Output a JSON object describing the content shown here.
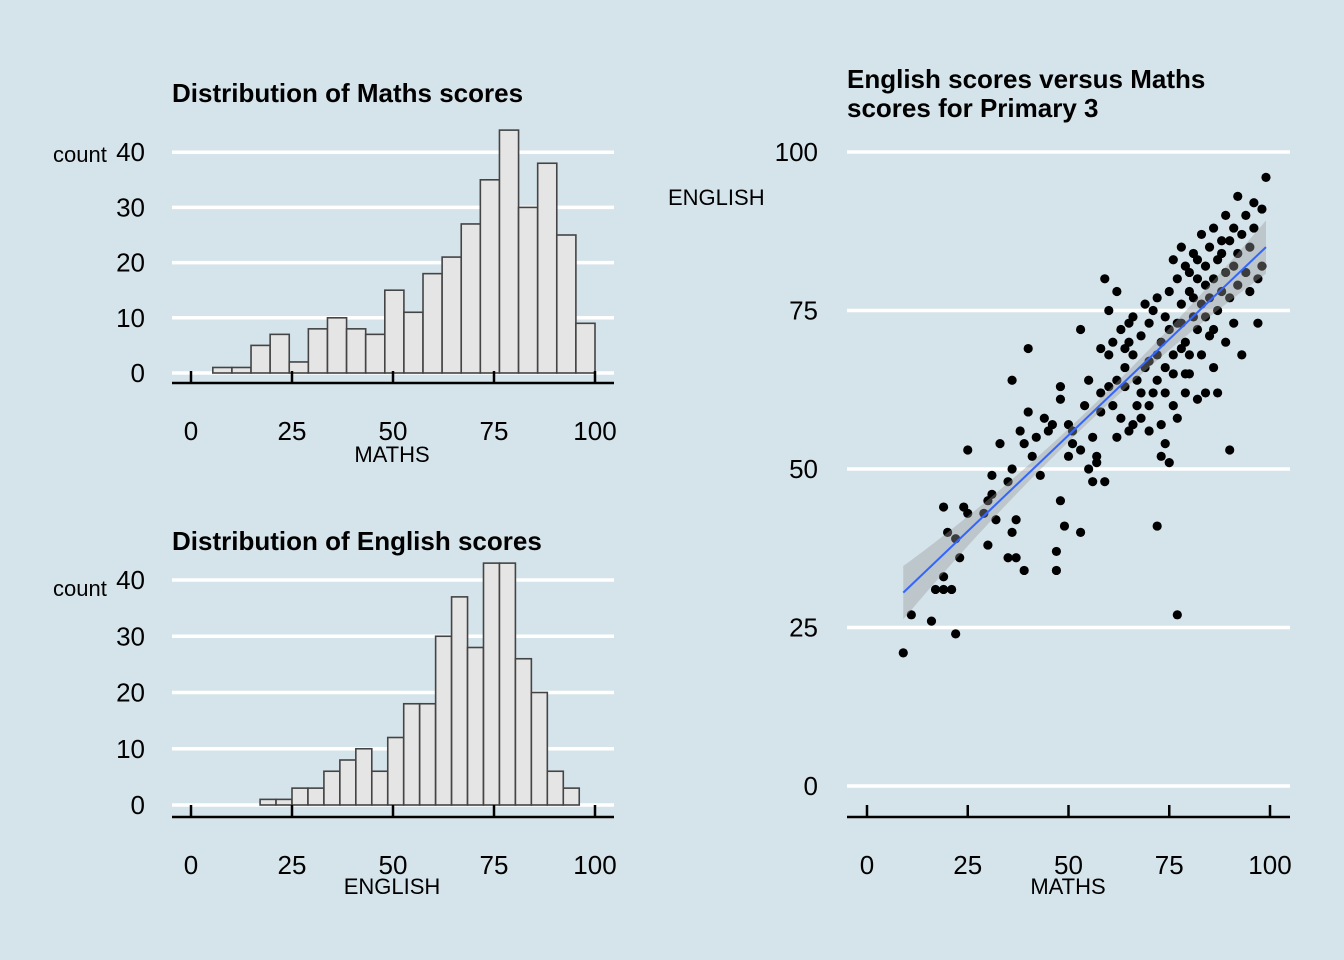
{
  "chart_data": [
    {
      "type": "bar",
      "title": "Distribution of Maths scores",
      "xlabel": "MATHS",
      "ylabel": "count",
      "xlim": [
        0,
        100
      ],
      "ylim": [
        0,
        44
      ],
      "xticks": [
        "0",
        "25",
        "50",
        "75",
        "100"
      ],
      "yticks": [
        "0",
        "10",
        "20",
        "30",
        "40"
      ],
      "bin_start": 5.4,
      "bin_width": 4.73,
      "values": [
        1,
        1,
        5,
        7,
        2,
        8,
        10,
        8,
        7,
        15,
        11,
        18,
        21,
        27,
        35,
        44,
        30,
        38,
        25,
        9
      ]
    },
    {
      "type": "bar",
      "title": "Distribution of English scores",
      "xlabel": "ENGLISH",
      "ylabel": "count",
      "xlim": [
        0,
        100
      ],
      "ylim": [
        0,
        43
      ],
      "xticks": [
        "0",
        "25",
        "50",
        "75",
        "100"
      ],
      "yticks": [
        "0",
        "10",
        "20",
        "30",
        "40"
      ],
      "bin_start": 17.1,
      "bin_width": 3.95,
      "values": [
        1,
        1,
        3,
        3,
        6,
        8,
        10,
        6,
        12,
        18,
        18,
        30,
        37,
        28,
        43,
        43,
        26,
        20,
        6,
        3
      ]
    },
    {
      "type": "scatter",
      "title": "English scores versus Maths scores for Primary 3",
      "title_lines": [
        "English scores versus Maths",
        "scores for Primary 3"
      ],
      "xlabel": "MATHS",
      "ylabel": "ENGLISH",
      "xlim": [
        0,
        100
      ],
      "ylim": [
        0,
        100
      ],
      "xticks": [
        "0",
        "25",
        "50",
        "75",
        "100"
      ],
      "yticks": [
        "0",
        "25",
        "50",
        "75",
        "100"
      ],
      "fit": {
        "type": "linear",
        "x": [
          9,
          99
        ],
        "y": [
          30.5,
          85
        ],
        "color": "#3366ff"
      },
      "points": [
        [
          9,
          21
        ],
        [
          11,
          27
        ],
        [
          16,
          26
        ],
        [
          17,
          31
        ],
        [
          19,
          31
        ],
        [
          21,
          31
        ],
        [
          19,
          33
        ],
        [
          22,
          24
        ],
        [
          19,
          44
        ],
        [
          20,
          40
        ],
        [
          22,
          39
        ],
        [
          23,
          36
        ],
        [
          24,
          44
        ],
        [
          25,
          43
        ],
        [
          25,
          53
        ],
        [
          29,
          43
        ],
        [
          30,
          38
        ],
        [
          30,
          45
        ],
        [
          31,
          46
        ],
        [
          31,
          49
        ],
        [
          32,
          42
        ],
        [
          33,
          54
        ],
        [
          35,
          48
        ],
        [
          36,
          50
        ],
        [
          35,
          36
        ],
        [
          37,
          36
        ],
        [
          39,
          34
        ],
        [
          36,
          40
        ],
        [
          37,
          42
        ],
        [
          36,
          64
        ],
        [
          38,
          56
        ],
        [
          39,
          54
        ],
        [
          40,
          59
        ],
        [
          40,
          69
        ],
        [
          41,
          52
        ],
        [
          42,
          55
        ],
        [
          43,
          49
        ],
        [
          44,
          58
        ],
        [
          45,
          56
        ],
        [
          46,
          57
        ],
        [
          47,
          34
        ],
        [
          47,
          37
        ],
        [
          48,
          45
        ],
        [
          48,
          61
        ],
        [
          48,
          63
        ],
        [
          49,
          41
        ],
        [
          50,
          57
        ],
        [
          50,
          52
        ],
        [
          51,
          56
        ],
        [
          51,
          54
        ],
        [
          53,
          40
        ],
        [
          53,
          72
        ],
        [
          53,
          53
        ],
        [
          54,
          60
        ],
        [
          55,
          64
        ],
        [
          55,
          50
        ],
        [
          56,
          55
        ],
        [
          56,
          48
        ],
        [
          57,
          51
        ],
        [
          57,
          52
        ],
        [
          58,
          59
        ],
        [
          58,
          62
        ],
        [
          59,
          80
        ],
        [
          59,
          48
        ],
        [
          60,
          75
        ],
        [
          60,
          68
        ],
        [
          61,
          70
        ],
        [
          61,
          60
        ],
        [
          62,
          78
        ],
        [
          62,
          64
        ],
        [
          63,
          58
        ],
        [
          63,
          72
        ],
        [
          64,
          63
        ],
        [
          64,
          66
        ],
        [
          65,
          56
        ],
        [
          65,
          70
        ],
        [
          65,
          73
        ],
        [
          66,
          74
        ],
        [
          66,
          68
        ],
        [
          67,
          64
        ],
        [
          67,
          60
        ],
        [
          68,
          62
        ],
        [
          68,
          71
        ],
        [
          69,
          76
        ],
        [
          69,
          66
        ],
        [
          70,
          73
        ],
        [
          70,
          56
        ],
        [
          70,
          67
        ],
        [
          71,
          75
        ],
        [
          71,
          62
        ],
        [
          72,
          77
        ],
        [
          72,
          41
        ],
        [
          72,
          68
        ],
        [
          73,
          52
        ],
        [
          73,
          70
        ],
        [
          73,
          57
        ],
        [
          74,
          74
        ],
        [
          74,
          66
        ],
        [
          74,
          54
        ],
        [
          75,
          78
        ],
        [
          75,
          72
        ],
        [
          75,
          51
        ],
        [
          76,
          68
        ],
        [
          76,
          83
        ],
        [
          76,
          60
        ],
        [
          77,
          73
        ],
        [
          77,
          80
        ],
        [
          77,
          27
        ],
        [
          77,
          58
        ],
        [
          78,
          85
        ],
        [
          78,
          76
        ],
        [
          78,
          69
        ],
        [
          79,
          82
        ],
        [
          79,
          70
        ],
        [
          79,
          62
        ],
        [
          80,
          78
        ],
        [
          80,
          81
        ],
        [
          80,
          65
        ],
        [
          81,
          74
        ],
        [
          81,
          84
        ],
        [
          81,
          77
        ],
        [
          82,
          72
        ],
        [
          82,
          80
        ],
        [
          82,
          83
        ],
        [
          83,
          76
        ],
        [
          83,
          68
        ],
        [
          83,
          87
        ],
        [
          84,
          79
        ],
        [
          84,
          82
        ],
        [
          84,
          74
        ],
        [
          85,
          85
        ],
        [
          85,
          71
        ],
        [
          85,
          77
        ],
        [
          86,
          80
        ],
        [
          86,
          66
        ],
        [
          86,
          88
        ],
        [
          87,
          83
        ],
        [
          87,
          75
        ],
        [
          87,
          62
        ],
        [
          88,
          86
        ],
        [
          88,
          78
        ],
        [
          88,
          84
        ],
        [
          89,
          81
        ],
        [
          89,
          70
        ],
        [
          89,
          90
        ],
        [
          90,
          86
        ],
        [
          90,
          53
        ],
        [
          90,
          77
        ],
        [
          91,
          88
        ],
        [
          91,
          82
        ],
        [
          91,
          73
        ],
        [
          92,
          84
        ],
        [
          92,
          79
        ],
        [
          92,
          93
        ],
        [
          93,
          87
        ],
        [
          93,
          68
        ],
        [
          94,
          81
        ],
        [
          94,
          90
        ],
        [
          95,
          85
        ],
        [
          95,
          78
        ],
        [
          96,
          92
        ],
        [
          96,
          88
        ],
        [
          97,
          80
        ],
        [
          97,
          73
        ],
        [
          98,
          91
        ],
        [
          98,
          82
        ],
        [
          99,
          96
        ],
        [
          66,
          57
        ],
        [
          68,
          58
        ],
        [
          64,
          69
        ],
        [
          60,
          63
        ],
        [
          62,
          55
        ],
        [
          70,
          60
        ],
        [
          58,
          69
        ],
        [
          79,
          65
        ],
        [
          82,
          61
        ],
        [
          84,
          62
        ],
        [
          76,
          65
        ],
        [
          80,
          68
        ],
        [
          78,
          73
        ],
        [
          86,
          72
        ],
        [
          74,
          62
        ],
        [
          72,
          64
        ]
      ]
    }
  ]
}
